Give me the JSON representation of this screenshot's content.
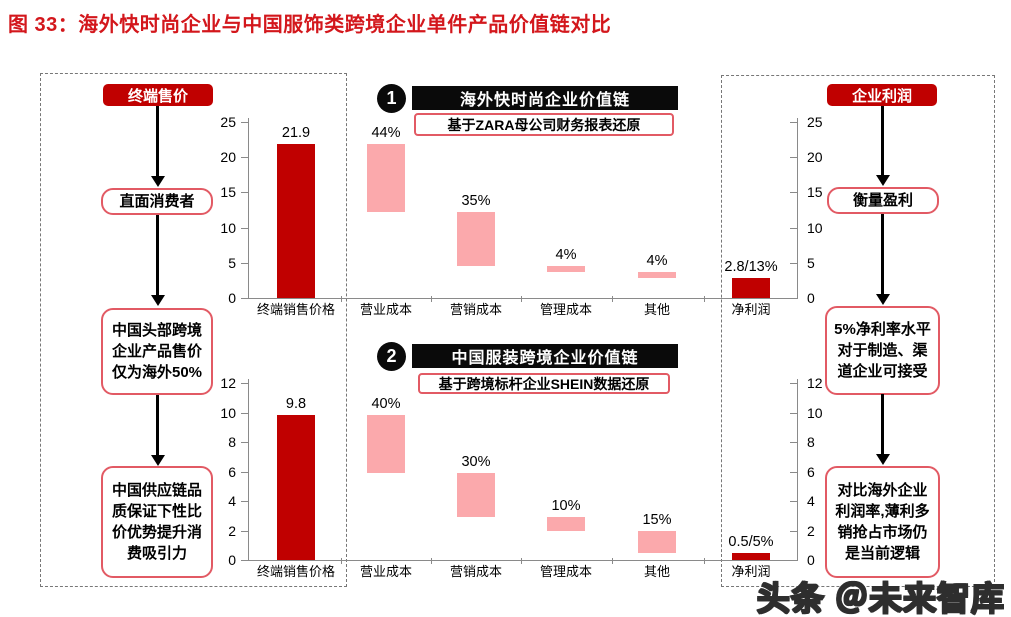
{
  "title": "图 33：海外快时尚企业与中国服饰类跨境企业单件产品价值链对比",
  "watermark": "头条 ＠未来智库",
  "colors": {
    "dark_red": "#C00000",
    "pink": "#FBA9AC",
    "accent_red": "#E25A64",
    "title_red": "#D3171C",
    "header_black": "#0a0a0a",
    "axis_gray": "#8a8a8a"
  },
  "left_panel": {
    "header": "终端售价",
    "steps": [
      "直面消费者",
      "中国头部跨境企业产品售价仅为海外50%",
      "中国供应链品质保证下性比价优势提升消费吸引力"
    ]
  },
  "right_panel": {
    "header": "企业利润",
    "steps": [
      "衡量盈利",
      "5%净利率水平对于制造、渠道企业可接受",
      "对比海外企业利润率,薄利多销抢占市场仍是当前逻辑"
    ]
  },
  "chart_data": [
    {
      "type": "bar",
      "subtype": "waterfall",
      "badge": "1",
      "title": "海外快时尚企业价值链",
      "subtitle": "基于ZARA母公司财务报表还原",
      "categories": [
        "终端销售价格",
        "营业成本",
        "营销成本",
        "管理成本",
        "其他",
        "净利润"
      ],
      "bars": [
        {
          "category": "终端销售价格",
          "label": "21.9",
          "from": 0,
          "to": 21.9,
          "color": "dark"
        },
        {
          "category": "营业成本",
          "label": "44%",
          "from": 12.26,
          "to": 21.9,
          "color": "pink"
        },
        {
          "category": "营销成本",
          "label": "35%",
          "from": 4.6,
          "to": 12.26,
          "color": "pink"
        },
        {
          "category": "管理成本",
          "label": "4%",
          "from": 3.72,
          "to": 4.6,
          "color": "pink"
        },
        {
          "category": "其他",
          "label": "4%",
          "from": 2.85,
          "to": 3.72,
          "color": "pink"
        },
        {
          "category": "净利润",
          "label": "2.8/13%",
          "from": 0,
          "to": 2.85,
          "color": "dark"
        }
      ],
      "ylim": [
        0,
        25
      ],
      "yticks": [
        0,
        5,
        10,
        15,
        20,
        25
      ],
      "dual_axis": true,
      "grid": false
    },
    {
      "type": "bar",
      "subtype": "waterfall",
      "badge": "2",
      "title": "中国服装跨境企业价值链",
      "subtitle": "基于跨境标杆企业SHEIN数据还原",
      "categories": [
        "终端销售价格",
        "营业成本",
        "营销成本",
        "管理成本",
        "其他",
        "净利润"
      ],
      "bars": [
        {
          "category": "终端销售价格",
          "label": "9.8",
          "from": 0,
          "to": 9.8,
          "color": "dark"
        },
        {
          "category": "营业成本",
          "label": "40%",
          "from": 5.88,
          "to": 9.8,
          "color": "pink"
        },
        {
          "category": "营销成本",
          "label": "30%",
          "from": 2.94,
          "to": 5.88,
          "color": "pink"
        },
        {
          "category": "管理成本",
          "label": "10%",
          "from": 1.96,
          "to": 2.94,
          "color": "pink"
        },
        {
          "category": "其他",
          "label": "15%",
          "from": 0.49,
          "to": 1.96,
          "color": "pink"
        },
        {
          "category": "净利润",
          "label": "0.5/5%",
          "from": 0,
          "to": 0.49,
          "color": "dark"
        }
      ],
      "ylim": [
        0,
        12
      ],
      "yticks": [
        0,
        2,
        4,
        6,
        8,
        10,
        12
      ],
      "dual_axis": true,
      "grid": false
    }
  ]
}
